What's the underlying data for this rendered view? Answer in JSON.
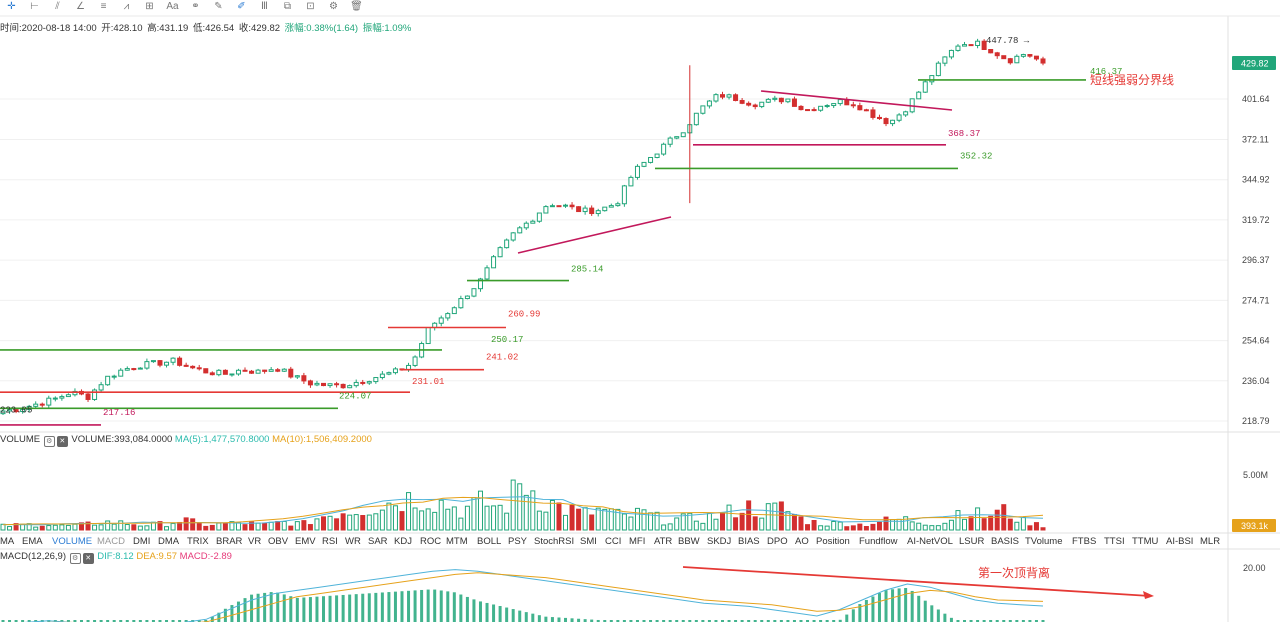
{
  "toolbar": {
    "tools": [
      {
        "name": "crosshair-icon",
        "glyph": "✛",
        "active": true
      },
      {
        "name": "horizontal-line-icon",
        "glyph": "⊢"
      },
      {
        "name": "trend-line-icon",
        "glyph": "⫽"
      },
      {
        "name": "angle-icon",
        "glyph": "∠"
      },
      {
        "name": "fib-icon",
        "glyph": "≡"
      },
      {
        "name": "wave-icon",
        "glyph": "⩘"
      },
      {
        "name": "measure-icon",
        "glyph": "⊞"
      },
      {
        "name": "text-icon",
        "glyph": "Aa"
      },
      {
        "name": "pattern-icon",
        "glyph": "⚭"
      },
      {
        "name": "pencil-icon",
        "glyph": "✎"
      },
      {
        "name": "brush-icon",
        "glyph": "✐",
        "active": true
      },
      {
        "name": "bars-icon",
        "glyph": "Ⅲ"
      },
      {
        "name": "copy-icon",
        "glyph": "⧉"
      },
      {
        "name": "lock-icon",
        "glyph": "⊡"
      },
      {
        "name": "settings-icon",
        "glyph": "⚙"
      },
      {
        "name": "trash-icon",
        "glyph": "🗑"
      }
    ]
  },
  "info": {
    "time": "时间:2020-08-18 14:00",
    "open": "开:428.10",
    "high": "高:431.19",
    "low": "低:426.54",
    "close": "收:429.82",
    "change": "涨幅:0.38%(1.64)",
    "amplitude": "振幅:1.09%"
  },
  "price_axis": {
    "ticks": [
      "401.64",
      "372.11",
      "344.92",
      "319.72",
      "296.37",
      "274.71",
      "254.64",
      "236.04",
      "218.79"
    ],
    "current_price": "429.82"
  },
  "levels": [
    {
      "label": "416.37",
      "color": "#3a9b2a"
    },
    {
      "label": "短线强弱分界线",
      "color": "#e53935"
    },
    {
      "label": "368.37",
      "color": "#c2185b"
    },
    {
      "label": "352.32",
      "color": "#3a9b2a"
    },
    {
      "label": "285.14",
      "color": "#3a9b2a"
    },
    {
      "label": "260.99",
      "color": "#e53935"
    },
    {
      "label": "250.17",
      "color": "#3a9b2a"
    },
    {
      "label": "241.02",
      "color": "#e53935"
    },
    {
      "label": "231.01",
      "color": "#e53935"
    },
    {
      "label": "224.07",
      "color": "#3a9b2a"
    },
    {
      "label": "223.05",
      "color": "#333333"
    },
    {
      "label": "217.16",
      "color": "#c2185b"
    },
    {
      "label": "447.78 →",
      "color": "#333333"
    }
  ],
  "volume": {
    "title": "VOLUME",
    "value": "VOLUME:393,084.0000",
    "ma5": "MA(5):1,477,570.8000",
    "ma10": "MA(10):1,506,409.2000",
    "axis_top": "5.00M",
    "current": "393.1k"
  },
  "indicators": [
    "MA",
    "EMA",
    "VOLUME",
    "MACD",
    "DMI",
    "DMA",
    "TRIX",
    "BRAR",
    "VR",
    "OBV",
    "EMV",
    "RSI",
    "WR",
    "SAR",
    "KDJ",
    "ROC",
    "MTM",
    "BOLL",
    "PSY",
    "StochRSI",
    "SMI",
    "CCI",
    "MFI",
    "ATR",
    "BBW",
    "SKDJ",
    "BIAS",
    "DPO",
    "AO",
    "Position",
    "Fundflow",
    "AI-NetVOL",
    "LSUR",
    "BASIS",
    "TVolume",
    "FTBS",
    "TTSI",
    "TTMU",
    "AI-BSI",
    "MLR"
  ],
  "indicator_active": "VOLUME",
  "macd": {
    "title": "MACD(12,26,9)",
    "dif": "DIF:8.12",
    "dea": "DEA:9.57",
    "macd": "MACD:-2.89",
    "axis_top": "20.00",
    "annotation": "第一次顶背离"
  },
  "colors": {
    "up": "#21a67a",
    "down": "#d32f2f",
    "green_line": "#3a9b2a",
    "red_line": "#e53935",
    "pink_line": "#c2185b",
    "dif": "#4fb3d9",
    "dea": "#e6a21b",
    "accent": "#2b7cd3"
  },
  "chart_data": {
    "type": "candlestick",
    "price_scale": {
      "type": "log",
      "ticks": [
        401.64,
        372.11,
        344.92,
        319.72,
        296.37,
        274.71,
        254.64,
        236.04,
        218.79
      ]
    },
    "last_price": 429.82,
    "high_marker": 447.78,
    "horizontal_levels": [
      416.37,
      368.37,
      352.32,
      285.14,
      260.99,
      250.17,
      241.02,
      231.01,
      224.07,
      217.16
    ],
    "trendlines": [
      "ascending support to ~350",
      "descending resistance from ~410 to ~393"
    ],
    "price_path": [
      223,
      224,
      226,
      228,
      231,
      229,
      237,
      241,
      243,
      244,
      245,
      242,
      240,
      239,
      241,
      240,
      242,
      238,
      235,
      234,
      234,
      236,
      238,
      240,
      244,
      261,
      268,
      276,
      285,
      300,
      312,
      320,
      330,
      328,
      325,
      326,
      330,
      350,
      360,
      370,
      380,
      395,
      405,
      402,
      398,
      400,
      402,
      393,
      397,
      400,
      398,
      390,
      384,
      395,
      412,
      430,
      445,
      447,
      440,
      432,
      438,
      429.82
    ],
    "volume_values_m": [
      0.4,
      0.5,
      0.6,
      0.4,
      0.5,
      0.8,
      0.7,
      0.5,
      0.6,
      1.0,
      0.5,
      0.6,
      0.7,
      0.5,
      0.8,
      0.6,
      1.4,
      1.9,
      2.2,
      2.6,
      3.1,
      3.4,
      2.7,
      2.0,
      2.8,
      2.1,
      5.0,
      3.0,
      2.2,
      1.6,
      2.0,
      1.3,
      1.7,
      1.0,
      1.1,
      1.2,
      1.5,
      2.4,
      1.9,
      2.2,
      1.0,
      0.6,
      0.7,
      0.5,
      0.9,
      1.1,
      0.8,
      0.6,
      2.2,
      1.3,
      1.9,
      0.9,
      0.4
    ],
    "macd_dif": [
      2,
      3,
      3.5,
      3,
      2.5,
      2,
      2,
      2.5,
      3,
      4,
      7,
      10,
      12,
      13,
      14,
      15,
      16,
      17,
      18,
      19,
      19.5,
      19,
      18,
      17,
      16,
      15,
      14,
      13,
      12,
      11,
      10,
      9,
      8.5,
      8,
      7,
      6,
      5,
      7,
      10,
      13,
      15,
      14,
      12,
      10,
      9,
      8.5,
      8.12
    ],
    "macd_dea": [
      2,
      2.5,
      3,
      3,
      2.8,
      2.5,
      2.2,
      2.3,
      2.6,
      3.2,
      5,
      7,
      9,
      11,
      12,
      13,
      14,
      15,
      16,
      17,
      18,
      18.5,
      18,
      17.5,
      17,
      16,
      15,
      14,
      13,
      12,
      11,
      10,
      9.5,
      9,
      8.5,
      7.5,
      6.5,
      6.8,
      8,
      10,
      12,
      13,
      12.5,
      11,
      10,
      9.8,
      9.57
    ],
    "annotation": "第一次顶背离"
  }
}
